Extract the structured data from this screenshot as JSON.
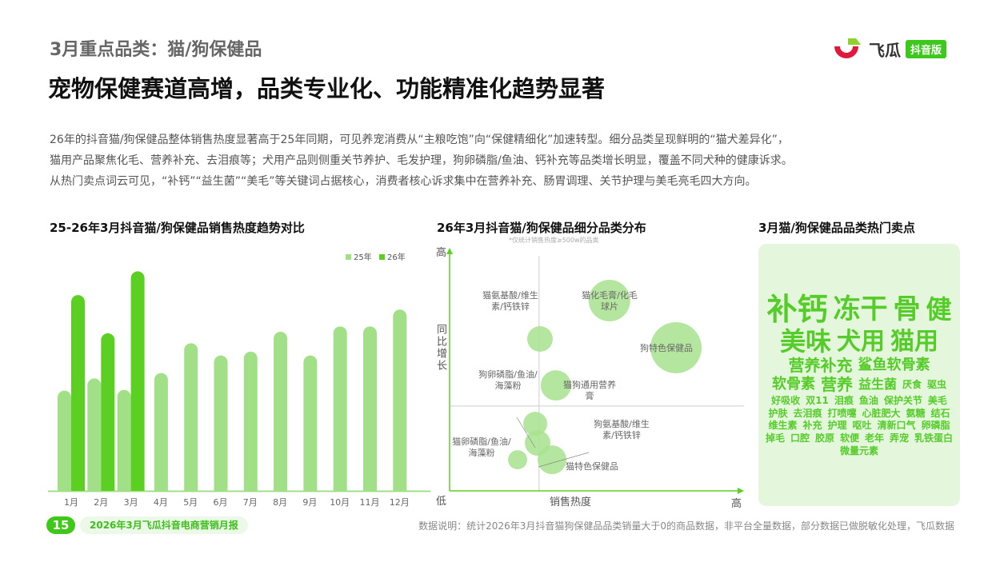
{
  "header": {
    "section": "3月重点品类：猫/狗保健品",
    "headline": "宠物保健赛道高增，品类专业化、功能精准化趋势显著",
    "logo": {
      "name": "飞瓜",
      "badge": "抖音版"
    }
  },
  "summary": [
    "26年的抖音猫/狗保健品整体销售热度显著高于25年同期，可见养宠消费从“主粮吃饱”向“保健精细化”加速转型。细分品类呈现鲜明的“猫犬差异化”，",
    "猫用产品聚焦化毛、营养补充、去泪痕等；犬用产品则侧重关节养护、毛发护理，狗卵磷脂/鱼油、钙补充等品类增长明显，覆盖不同犬种的健康诉求。",
    "从热门卖点词云可见，“补钙”“益生菌”“美毛”等关键词占据核心，消费者核心诉求集中在营养补充、肠胃调理、关节护理与美毛亮毛四大方向。"
  ],
  "watermark": "飞瓜数据",
  "colors": {
    "y25": "#a1e087",
    "y26": "#5bd022",
    "bubble": "#a8e28f",
    "axis": "#5bd022",
    "accent": "#3fc81a"
  },
  "chart_data": [
    {
      "type": "bar",
      "title": "25-26年3月抖音猫/狗保健品销售热度趋势对比",
      "categories": [
        "1月",
        "2月",
        "3月",
        "4月",
        "5月",
        "6月",
        "7月",
        "8月",
        "9月",
        "10月",
        "11月",
        "12月"
      ],
      "series": [
        {
          "name": "25年",
          "values": [
            131,
            147,
            132,
            154,
            193,
            177,
            182,
            208,
            177,
            215,
            215,
            237
          ]
        },
        {
          "name": "26年",
          "values": [
            256,
            206,
            287,
            null,
            null,
            null,
            null,
            null,
            null,
            null,
            null,
            null
          ]
        }
      ],
      "ylim": [
        0,
        300
      ],
      "legend": "top-right",
      "grid": false
    },
    {
      "type": "scatter",
      "title": "26年3月抖音猫/狗保健品细分品类分布",
      "subtitle": "*仅统计销售热度≥500w的品类",
      "xlabel": "销售热度",
      "ylabel": "同比增长",
      "x_low": "低",
      "x_high": "高",
      "y_high": "高",
      "xlim": [
        0,
        100
      ],
      "ylim": [
        0,
        100
      ],
      "quadrant": {
        "x": 30.4,
        "y": 34.9
      },
      "points": [
        {
          "label": "猫氨基酸/维生素/钙铁锌",
          "x": 30.7,
          "y": 62.5,
          "size": 16,
          "lines": [
            "猫氨基酸/维生",
            "素/钙铁锌"
          ]
        },
        {
          "label": "猫化毛膏/化毛球片",
          "x": 54.3,
          "y": 78.3,
          "size": 26,
          "lines": [
            "猫化毛膏/化毛",
            "球片"
          ]
        },
        {
          "label": "狗特色保健品",
          "x": 76.9,
          "y": 58.9,
          "size": 32,
          "lines": [
            "狗特色保健品"
          ]
        },
        {
          "label": "猫狗通用营养膏",
          "x": 36.1,
          "y": 43.4,
          "size": 19,
          "lines": [
            "猫狗通用营养",
            "膏"
          ]
        },
        {
          "label": "狗卵磷脂/鱼油/海藻粉",
          "x": 29.1,
          "y": 27.6,
          "size": 15,
          "lines": [
            "狗卵磷脂/鱼油/",
            "海藻粉"
          ]
        },
        {
          "label": "狗氨基酸/维生素/钙铁锌",
          "x": 29.9,
          "y": 19.7,
          "size": 16,
          "lines": [
            "狗氨基酸/维生",
            "素/钙铁锌"
          ]
        },
        {
          "label": "猫特色保健品",
          "x": 34.8,
          "y": 12.8,
          "size": 18,
          "lines": [
            "猫特色保健品"
          ]
        },
        {
          "label": "猫卵磷脂/鱼油/海藻粉",
          "x": 23.1,
          "y": 12.8,
          "size": 12,
          "lines": [
            "猫卵磷脂/鱼油/",
            "海藻粉"
          ]
        }
      ]
    }
  ],
  "wordcloud": {
    "title": "3月猫/狗保健品品类热门卖点",
    "words": [
      "补钙",
      "冻干",
      "骨",
      "健",
      "美味",
      "犬用",
      "猫用",
      "营养补充",
      "鲨鱼软骨素",
      "软骨素",
      "营养",
      "益生菌",
      "厌食",
      "驱虫",
      "好吸收",
      "双11",
      "泪痕",
      "鱼油",
      "保护关节",
      "美毛",
      "护肤",
      "去泪痕",
      "打喷嚏",
      "心脏肥大",
      "氨糖",
      "结石",
      "维生素",
      "补充",
      "护理",
      "呕吐",
      "清新口气",
      "卵磷脂",
      "掉毛",
      "口腔",
      "胶原",
      "软便",
      "老年",
      "弄宠",
      "乳铁蛋白",
      "微量元素"
    ]
  },
  "footer": {
    "page": "15",
    "report": "2026年3月飞瓜抖音电商营销月报",
    "note": "数据说明：统计2026年3月抖音猫狗保健品品类销量大于0的商品数据，非平台全量数据，部分数据已做脱敏化处理，飞瓜数据"
  }
}
